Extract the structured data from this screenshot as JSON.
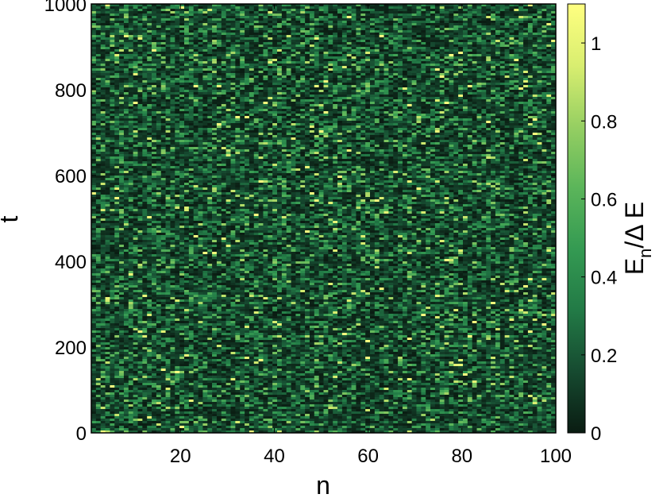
{
  "chart_data": {
    "type": "heatmap",
    "xlabel": "n",
    "ylabel": "t",
    "colorbar_label": {
      "main": "E",
      "sub": "n",
      "rest": "/Δ E"
    },
    "xlim": [
      1,
      100
    ],
    "ylim": [
      0,
      1000
    ],
    "xticks": [
      20,
      40,
      60,
      80,
      100
    ],
    "yticks": [
      0,
      200,
      400,
      600,
      800,
      1000
    ],
    "colorbar_range": [
      0,
      1.1
    ],
    "colorbar_ticks": [
      0,
      0.2,
      0.4,
      0.6,
      0.8,
      1
    ],
    "grid_size": {
      "n": 100,
      "t": 180
    },
    "value_distribution": {
      "typical_range": [
        0.1,
        0.4
      ],
      "min": 0,
      "max": 1.1,
      "mean_estimate": 0.22
    },
    "colormap": [
      "#0a1c12",
      "#164a30",
      "#227a46",
      "#349a52",
      "#5bb55a",
      "#96cf62",
      "#d9ee70",
      "#ffff80"
    ]
  }
}
